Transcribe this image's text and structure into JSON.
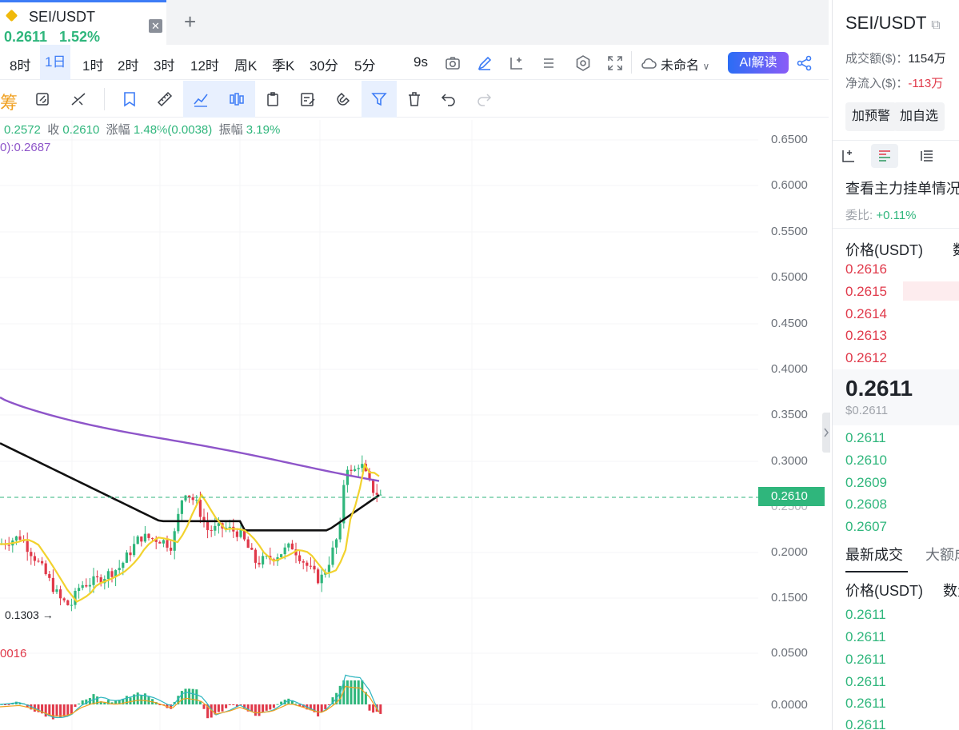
{
  "tab": {
    "title": "SEI/USDT",
    "price": "0.2611",
    "change_pct": "1.52%"
  },
  "timeframes": [
    "8时",
    "1日",
    "1时",
    "2时",
    "3时",
    "12时",
    "周K",
    "季K",
    "30分",
    "5分"
  ],
  "active_timeframe": "1日",
  "toolbar": {
    "countdown": "9s",
    "layout_name": "未命名",
    "ai_label": "AI解读",
    "chip_label": "筹"
  },
  "ohlc": {
    "low_text": "0.2572",
    "close_label": "收",
    "close": "0.2610",
    "change_label": "涨幅",
    "change": "1.48%(0.0038)",
    "amp_label": "振幅",
    "amp": "3.19%"
  },
  "ma_text": "0):0.2687",
  "macd_text": "0016",
  "low_marker": "0.1303",
  "y_axis": [
    "0.6500",
    "0.6000",
    "0.5500",
    "0.5000",
    "0.4500",
    "0.4000",
    "0.3500",
    "0.3000",
    "0.2500",
    "0.2000",
    "0.1500",
    "0.0500",
    "0.0000"
  ],
  "current_price_tag": "0.2610",
  "right_panel": {
    "title": "SEI/USDT",
    "volume_label": "成交额($)：",
    "volume_value": "1154万",
    "netflow_label": "净流入($)：",
    "netflow_value": "-113万",
    "alert_button": "加预警",
    "watchlist_button": "加自选",
    "orderbook_link": "查看主力挂单情况",
    "ratio_label": "委比:",
    "ratio_value": "+0.11%",
    "price_header": "价格(USDT)",
    "qty_header": "数量",
    "asks": [
      "0.2616",
      "0.2615",
      "0.2614",
      "0.2613",
      "0.2612"
    ],
    "last_price": "0.2611",
    "last_price_usd": "$0.2611",
    "bids": [
      "0.2611",
      "0.2610",
      "0.2609",
      "0.2608",
      "0.2607"
    ],
    "trades_tab": "最新成交",
    "large_trades_tab": "大额成交",
    "trades_price_header": "价格(USDT)",
    "trades_qty_header": "数量",
    "trades": [
      "0.2611",
      "0.2611",
      "0.2611",
      "0.2611",
      "0.2611",
      "0.2611"
    ]
  },
  "colors": {
    "up": "#2fb67c",
    "down": "#e0394a",
    "accent": "#3d7cf6",
    "ma_purple": "#8e55c9",
    "ma_yellow": "#f2d22e",
    "ma_black": "#111111"
  },
  "chart_data": {
    "type": "candlestick",
    "y_axis_range": [
      0.13,
      0.65
    ],
    "indicator_pane": "MACD",
    "current_price": 0.261,
    "low_marker": 0.1303
  }
}
